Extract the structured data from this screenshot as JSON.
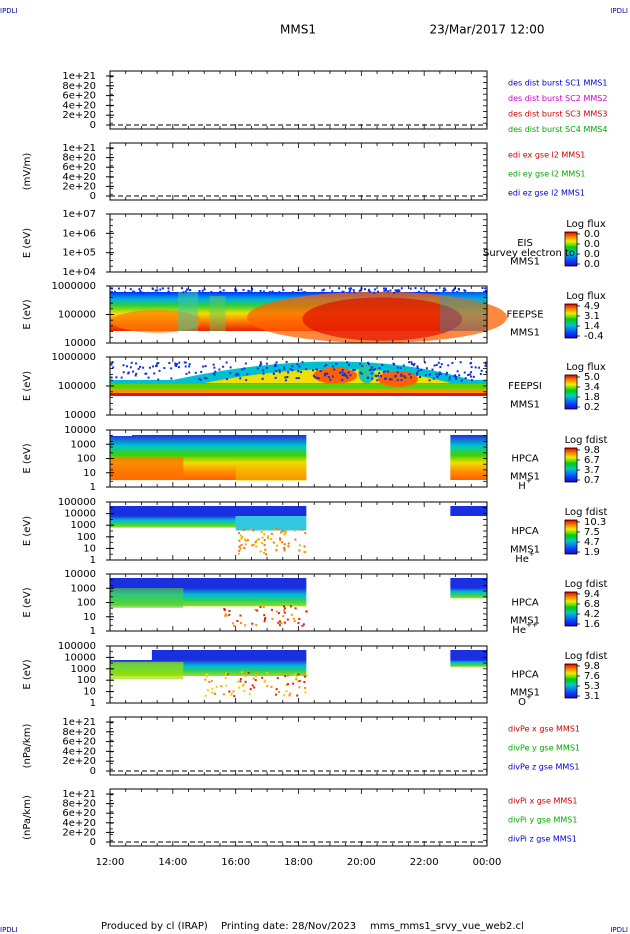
{
  "header": {
    "corner_tl": "IPDLI",
    "corner_tr": "IPDLI",
    "corner_bl": "IPDLI",
    "corner_br": "IPDLI",
    "mission": "MMS1",
    "datetime": "23/Mar/2017 12:00"
  },
  "footer": {
    "produced_by": "Produced by cl (IRAP)",
    "printing_date": "Printing date: 28/Nov/2023",
    "filename": "mms_mms1_srvy_vue_web2.cl"
  },
  "chart_data": {
    "type": "heatmap",
    "x_ticks": [
      "12:00",
      "14:00",
      "16:00",
      "18:00",
      "20:00",
      "22:00",
      "00:00"
    ],
    "panels": [
      {
        "kind": "line",
        "ylabel": "",
        "yticks": [
          "1e+21",
          "8e+20",
          "6e+20",
          "4e+20",
          "2e+20",
          "0"
        ],
        "legend": [
          {
            "text": "des dist burst SC1 MMS1",
            "color": "#0000cc"
          },
          {
            "text": "des dist burst SC2 MMS2",
            "color": "#cc00cc"
          },
          {
            "text": "des dist burst SC3 MMS3",
            "color": "#cc0000"
          },
          {
            "text": "des dist burst SC4 MMS4",
            "color": "#00aa00"
          }
        ]
      },
      {
        "kind": "line",
        "ylabel": "(mV/m)",
        "yticks": [
          "1e+21",
          "8e+20",
          "6e+20",
          "4e+20",
          "2e+20",
          "0"
        ],
        "legend": [
          {
            "text": "edi ex gse l2 MMS1",
            "color": "#cc0000"
          },
          {
            "text": "edi ey gse l2 MMS1",
            "color": "#00aa00"
          },
          {
            "text": "edi ez gse l2 MMS1",
            "color": "#0000cc"
          }
        ]
      },
      {
        "kind": "spectro",
        "ylabel": "E (eV)",
        "yticks": [
          "1e+07",
          "1e+06",
          "1e+05",
          "1e+04"
        ],
        "side": [
          "EIS",
          "MMS1"
        ],
        "overlay": "Survey electron to",
        "cbar": {
          "title": "Log flux",
          "ticks": [
            "0.0",
            "0.0",
            "0.0",
            "0.0"
          ]
        },
        "extent": []
      },
      {
        "kind": "spectro",
        "ylabel": "E (eV)",
        "yticks": [
          "1000000",
          "100000",
          "10000"
        ],
        "side": [
          "FEEPSE",
          "MMS1"
        ],
        "cbar": {
          "title": "Log flux",
          "ticks": [
            "4.9",
            "3.1",
            "1.4",
            "-0.4"
          ]
        },
        "extent": [
          [
            "12:00",
            "00:00"
          ]
        ]
      },
      {
        "kind": "spectro",
        "ylabel": "E (eV)",
        "yticks": [
          "1000000",
          "100000",
          "10000"
        ],
        "side": [
          "FEEPSI",
          "MMS1"
        ],
        "cbar": {
          "title": "Log flux",
          "ticks": [
            "5.0",
            "3.4",
            "1.8",
            "0.2"
          ]
        },
        "extent": [
          [
            "12:00",
            "00:00"
          ]
        ]
      },
      {
        "kind": "spectro",
        "ylabel": "E (eV)",
        "yticks": [
          "10000",
          "1000",
          "100",
          "10",
          "1"
        ],
        "side": [
          "HPCA",
          "MMS1"
        ],
        "species": {
          "base": "H",
          "sup": "+"
        },
        "cbar": {
          "title": "Log fdist",
          "ticks": [
            "9.8",
            "6.7",
            "3.7",
            "0.7"
          ]
        },
        "extent": [
          [
            "12:00",
            "18:15"
          ],
          [
            "22:50",
            "00:00"
          ]
        ]
      },
      {
        "kind": "spectro",
        "ylabel": "E (eV)",
        "yticks": [
          "100000",
          "10000",
          "1000",
          "100",
          "10",
          "1"
        ],
        "side": [
          "HPCA",
          "MMS1"
        ],
        "species": {
          "base": "He",
          "sup": "+"
        },
        "cbar": {
          "title": "Log fdist",
          "ticks": [
            "10.3",
            "7.5",
            "4.7",
            "1.9"
          ]
        },
        "extent": [
          [
            "12:00",
            "18:15"
          ],
          [
            "22:50",
            "00:00"
          ]
        ]
      },
      {
        "kind": "spectro",
        "ylabel": "E (eV)",
        "yticks": [
          "10000",
          "1000",
          "100",
          "10",
          "1"
        ],
        "side": [
          "HPCA",
          "MMS1"
        ],
        "species": {
          "base": "He",
          "sup": "++"
        },
        "cbar": {
          "title": "Log fdist",
          "ticks": [
            "9.4",
            "6.8",
            "4.2",
            "1.6"
          ]
        },
        "extent": [
          [
            "12:00",
            "18:15"
          ],
          [
            "22:50",
            "00:00"
          ]
        ]
      },
      {
        "kind": "spectro",
        "ylabel": "E (eV)",
        "yticks": [
          "100000",
          "10000",
          "1000",
          "100",
          "10",
          "1"
        ],
        "side": [
          "HPCA",
          "MMS1"
        ],
        "species": {
          "base": "O",
          "sup": "+"
        },
        "cbar": {
          "title": "Log fdist",
          "ticks": [
            "9.8",
            "7.6",
            "5.3",
            "3.1"
          ]
        },
        "extent": [
          [
            "12:00",
            "18:15"
          ],
          [
            "22:50",
            "00:00"
          ]
        ]
      },
      {
        "kind": "line",
        "ylabel": "(nPa/km)",
        "yticks": [
          "1e+21",
          "8e+20",
          "6e+20",
          "4e+20",
          "2e+20",
          "0"
        ],
        "legend": [
          {
            "text": "divPe x gse MMS1",
            "color": "#cc0000"
          },
          {
            "text": "divPe y gse MMS1",
            "color": "#00aa00"
          },
          {
            "text": "divPe z gse MMS1",
            "color": "#0000cc"
          }
        ]
      },
      {
        "kind": "line",
        "ylabel": "(nPa/km)",
        "yticks": [
          "1e+21",
          "8e+20",
          "6e+20",
          "4e+20",
          "2e+20",
          "0"
        ],
        "legend": [
          {
            "text": "divPi x gse MMS1",
            "color": "#cc0000"
          },
          {
            "text": "divPi y gse MMS1",
            "color": "#00aa00"
          },
          {
            "text": "divPi z gse MMS1",
            "color": "#0000cc"
          }
        ]
      }
    ]
  }
}
